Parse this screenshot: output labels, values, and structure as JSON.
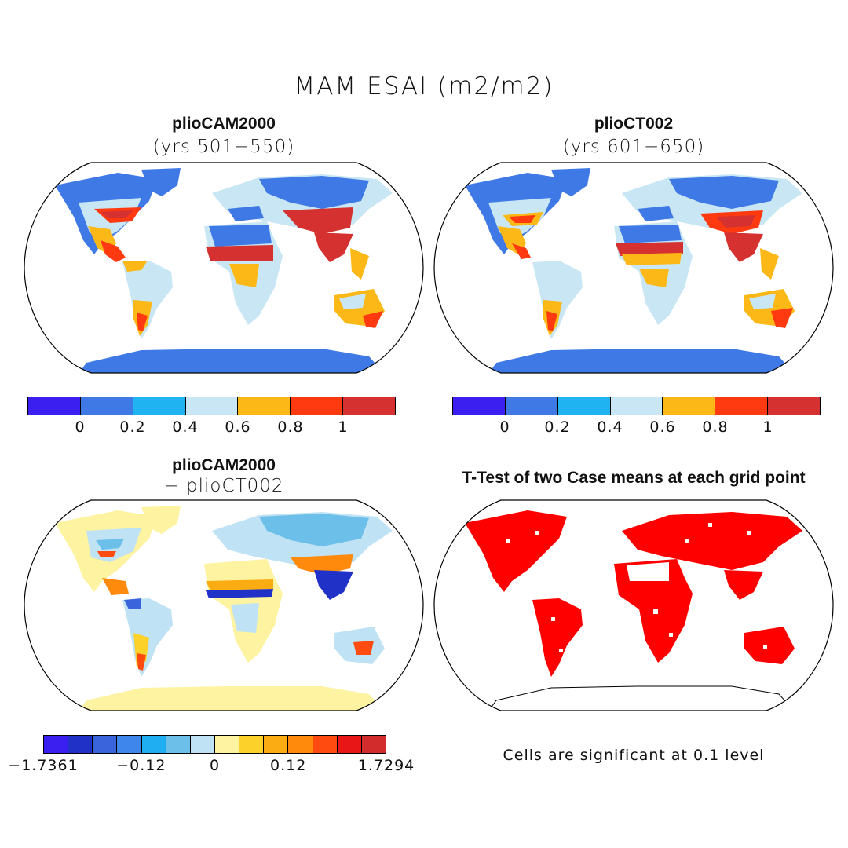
{
  "title": "MAM ESAI (m2/m2)",
  "panels": [
    {
      "id": "p1",
      "name": "plioCAM2000",
      "subtitle": "(yrs 501−550)",
      "type": "mean"
    },
    {
      "id": "p2",
      "name": "plioCT002",
      "subtitle": "(yrs 601−650)",
      "type": "mean"
    },
    {
      "id": "p3",
      "name": "plioCAM2000",
      "subtitle": "− plioCT002",
      "type": "difference"
    },
    {
      "id": "p4",
      "name": "T-Test of two Case means at each grid point",
      "subtitle": "",
      "type": "significance"
    }
  ],
  "colorbars": {
    "mean": {
      "colors": [
        "#3b1ff0",
        "#3f79e6",
        "#1fb3f2",
        "#c8e6f4",
        "#fbb817",
        "#ff3a10",
        "#d63131"
      ],
      "labels": [
        "0",
        "0.2",
        "0.4",
        "0.6",
        "0.8",
        "1"
      ]
    },
    "difference": {
      "colors": [
        "#3a1ff0",
        "#2031c8",
        "#3a64dc",
        "#3f86ec",
        "#20aef2",
        "#6cbfe8",
        "#bfe2f4",
        "#fdf3a0",
        "#fcd22a",
        "#fbac12",
        "#ff8a0c",
        "#ff4a10",
        "#e81616",
        "#d32c2c"
      ],
      "labels": [
        "−1.7361",
        "−0.12",
        "0",
        "0.12",
        "1.7294"
      ]
    }
  },
  "significance_note": "Cells are significant at 0.1 level",
  "significance_color": "#ff0000",
  "land_colors": {
    "ocean": "#ffffff",
    "coast": "#000000",
    "ice": "#3f79e6"
  }
}
